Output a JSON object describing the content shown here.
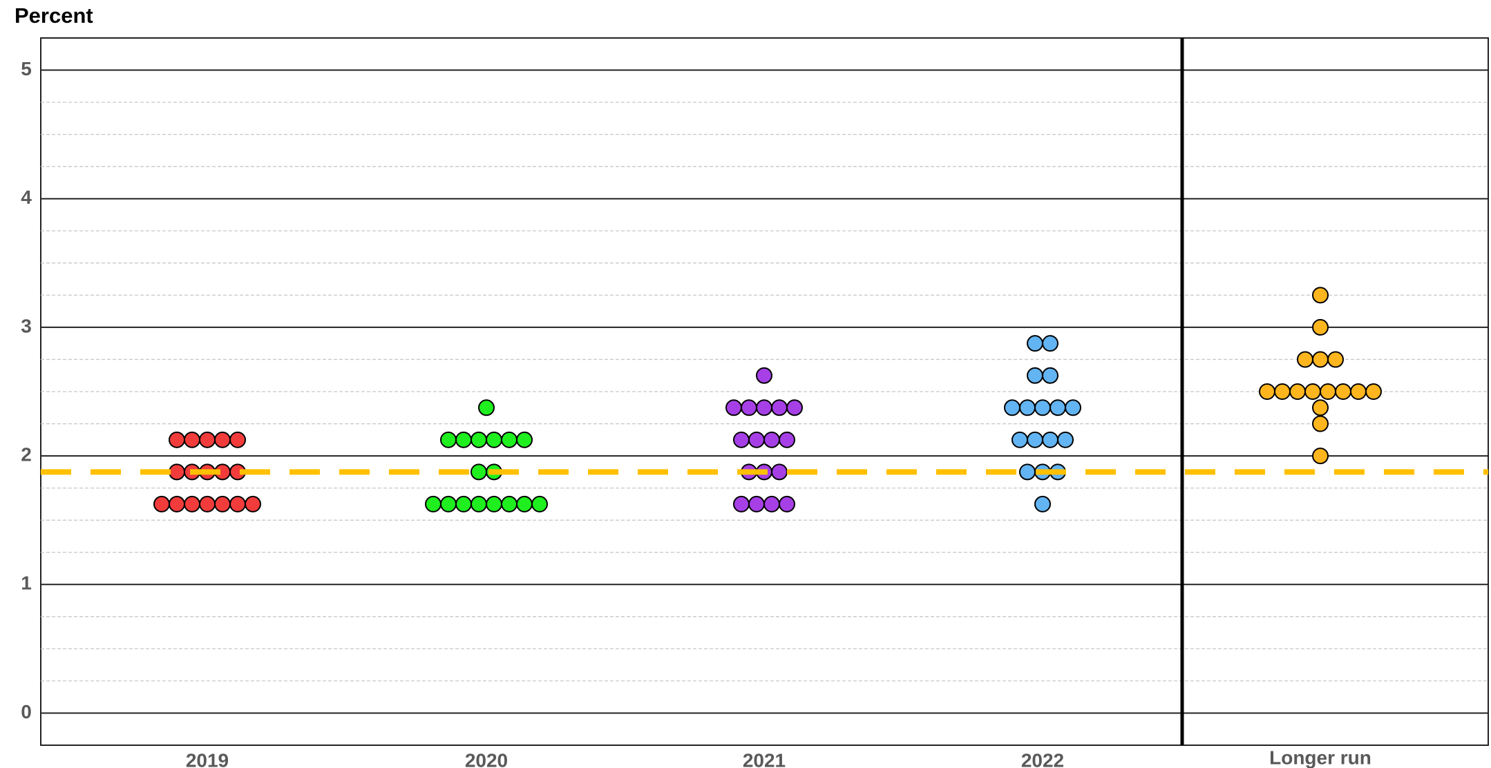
{
  "chart_data": {
    "type": "dot",
    "ylabel": "Percent",
    "categories": [
      "2019",
      "2020",
      "2021",
      "2022",
      "Longer run"
    ],
    "colors": [
      "#f23c3c",
      "#1fef1f",
      "#a640e6",
      "#62b4f2",
      "#ffb61e"
    ],
    "values": [
      [
        2.125,
        2.125,
        2.125,
        2.125,
        2.125,
        1.875,
        1.875,
        1.875,
        1.875,
        1.875,
        1.625,
        1.625,
        1.625,
        1.625,
        1.625,
        1.625,
        1.625
      ],
      [
        2.375,
        2.125,
        2.125,
        2.125,
        2.125,
        2.125,
        2.125,
        1.875,
        1.875,
        1.625,
        1.625,
        1.625,
        1.625,
        1.625,
        1.625,
        1.625,
        1.625
      ],
      [
        2.625,
        2.375,
        2.375,
        2.375,
        2.375,
        2.375,
        2.125,
        2.125,
        2.125,
        2.125,
        1.875,
        1.875,
        1.875,
        1.625,
        1.625,
        1.625,
        1.625
      ],
      [
        2.875,
        2.875,
        2.625,
        2.625,
        2.375,
        2.375,
        2.375,
        2.375,
        2.375,
        2.125,
        2.125,
        2.125,
        2.125,
        1.875,
        1.875,
        1.875,
        1.625
      ],
      [
        3.25,
        3.0,
        2.75,
        2.75,
        2.75,
        2.5,
        2.5,
        2.5,
        2.5,
        2.5,
        2.5,
        2.5,
        2.5,
        2.375,
        2.25,
        2.0
      ]
    ],
    "reference_line": 1.875,
    "reference_color": "#ffc000",
    "ylim": [
      -0.25,
      5.25
    ],
    "yticks": [
      0,
      1,
      2,
      3,
      4,
      5
    ],
    "minor_yticks": [
      0.25,
      0.5,
      0.75,
      1.25,
      1.5,
      1.75,
      2.25,
      2.5,
      2.75,
      3.25,
      3.5,
      3.75,
      4.25,
      4.5,
      4.75
    ],
    "grid": true
  }
}
